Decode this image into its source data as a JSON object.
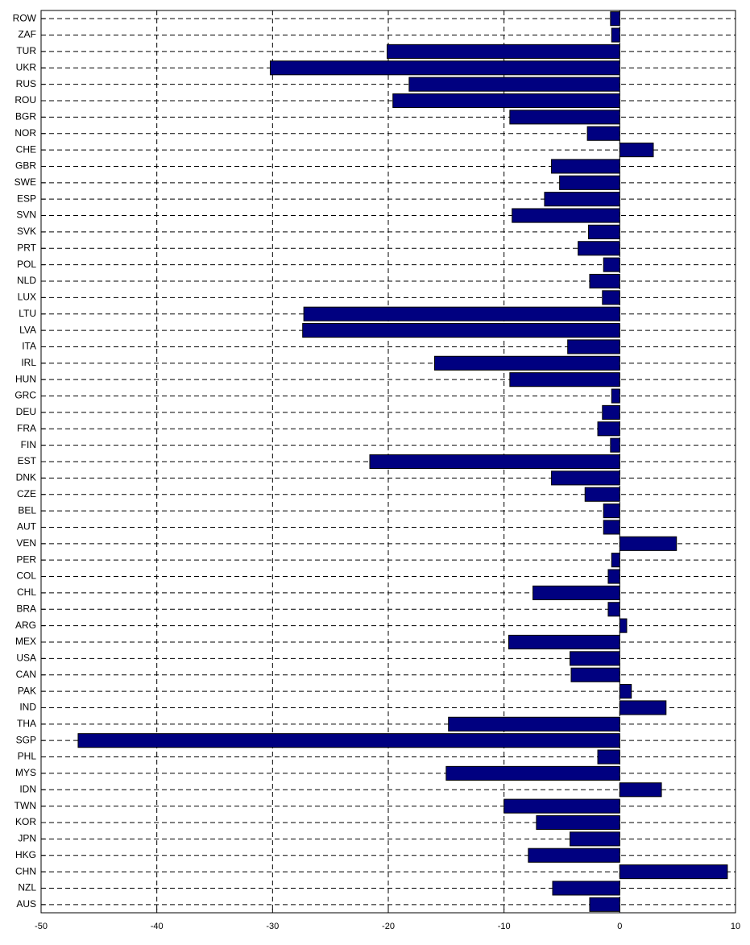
{
  "chart_data": {
    "type": "barh",
    "categories": [
      "ROW",
      "ZAF",
      "TUR",
      "UKR",
      "RUS",
      "ROU",
      "BGR",
      "NOR",
      "CHE",
      "GBR",
      "SWE",
      "ESP",
      "SVN",
      "SVK",
      "PRT",
      "POL",
      "NLD",
      "LUX",
      "LTU",
      "LVA",
      "ITA",
      "IRL",
      "HUN",
      "GRC",
      "DEU",
      "FRA",
      "FIN",
      "EST",
      "DNK",
      "CZE",
      "BEL",
      "AUT",
      "VEN",
      "PER",
      "COL",
      "CHL",
      "BRA",
      "ARG",
      "MEX",
      "USA",
      "CAN",
      "PAK",
      "IND",
      "THA",
      "SGP",
      "PHL",
      "MYS",
      "IDN",
      "TWN",
      "KOR",
      "JPN",
      "HKG",
      "CHN",
      "NZL",
      "AUS"
    ],
    "values": [
      -0.8,
      -0.7,
      -20.1,
      -30.2,
      -18.2,
      -19.6,
      -9.5,
      -2.8,
      2.9,
      -5.9,
      -5.2,
      -6.5,
      -9.3,
      -2.7,
      -3.6,
      -1.4,
      -2.6,
      -1.5,
      -27.3,
      -27.4,
      -4.5,
      -16,
      -9.5,
      -0.7,
      -1.5,
      -1.9,
      -0.8,
      -21.6,
      -5.9,
      -3,
      -1.4,
      -1.4,
      4.9,
      -0.7,
      -1,
      -7.5,
      -1,
      0.6,
      -9.6,
      -4.3,
      -4.2,
      1,
      4,
      -14.8,
      -46.8,
      -1.9,
      -15,
      3.6,
      -10,
      -7.2,
      -4.3,
      -7.9,
      9.3,
      -5.8,
      -2.6
    ],
    "color": "#000080",
    "xlim": [
      -50,
      10
    ],
    "xticks": [
      -50,
      -40,
      -30,
      -20,
      -10,
      0,
      10
    ],
    "grid": true
  }
}
